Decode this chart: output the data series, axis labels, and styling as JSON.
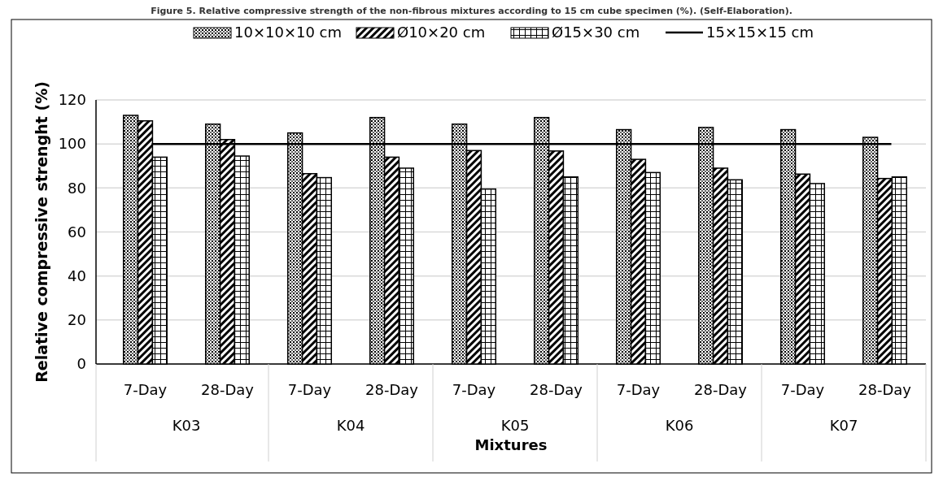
{
  "chart_data": {
    "type": "bar",
    "title": "Figure 5. Relative compressive strength of the non-fibrous mixtures according to 15 cm cube specimen (%). (Self-Elaboration).",
    "xlabel": "Mixtures",
    "ylabel": "Relative compressive strenght (%)",
    "categories": [
      "7-Day",
      "28-Day",
      "7-Day",
      "28-Day",
      "7-Day",
      "28-Day",
      "7-Day",
      "28-Day",
      "7-Day",
      "28-Day"
    ],
    "annotations": [
      "K03",
      "K04",
      "K05",
      "K06",
      "K07"
    ],
    "series": [
      {
        "name": "10×10×10 cm",
        "color": "#000000",
        "values": [
          113,
          109,
          105,
          112,
          109,
          112,
          106.5,
          107.5,
          106.5,
          103
        ]
      },
      {
        "name": "Ø10×20 cm",
        "color": "#000000",
        "values": [
          110.5,
          102,
          86.5,
          94,
          97,
          96.8,
          93,
          89,
          86.3,
          84.3
        ]
      },
      {
        "name": "Ø15×30 cm",
        "color": "#000000",
        "values": [
          94,
          94.5,
          84.7,
          89,
          79.5,
          85,
          87,
          83.7,
          82,
          85
        ]
      },
      {
        "name": "15×15×15 cm",
        "type": "line",
        "color": "#000000",
        "values": [
          100,
          100,
          100,
          100,
          100,
          100,
          100,
          100,
          100,
          100
        ]
      }
    ],
    "ylim": [
      0,
      120
    ],
    "yticks": [
      0,
      20,
      40,
      60,
      80,
      100,
      120
    ],
    "grid": "y",
    "legend": "top"
  }
}
